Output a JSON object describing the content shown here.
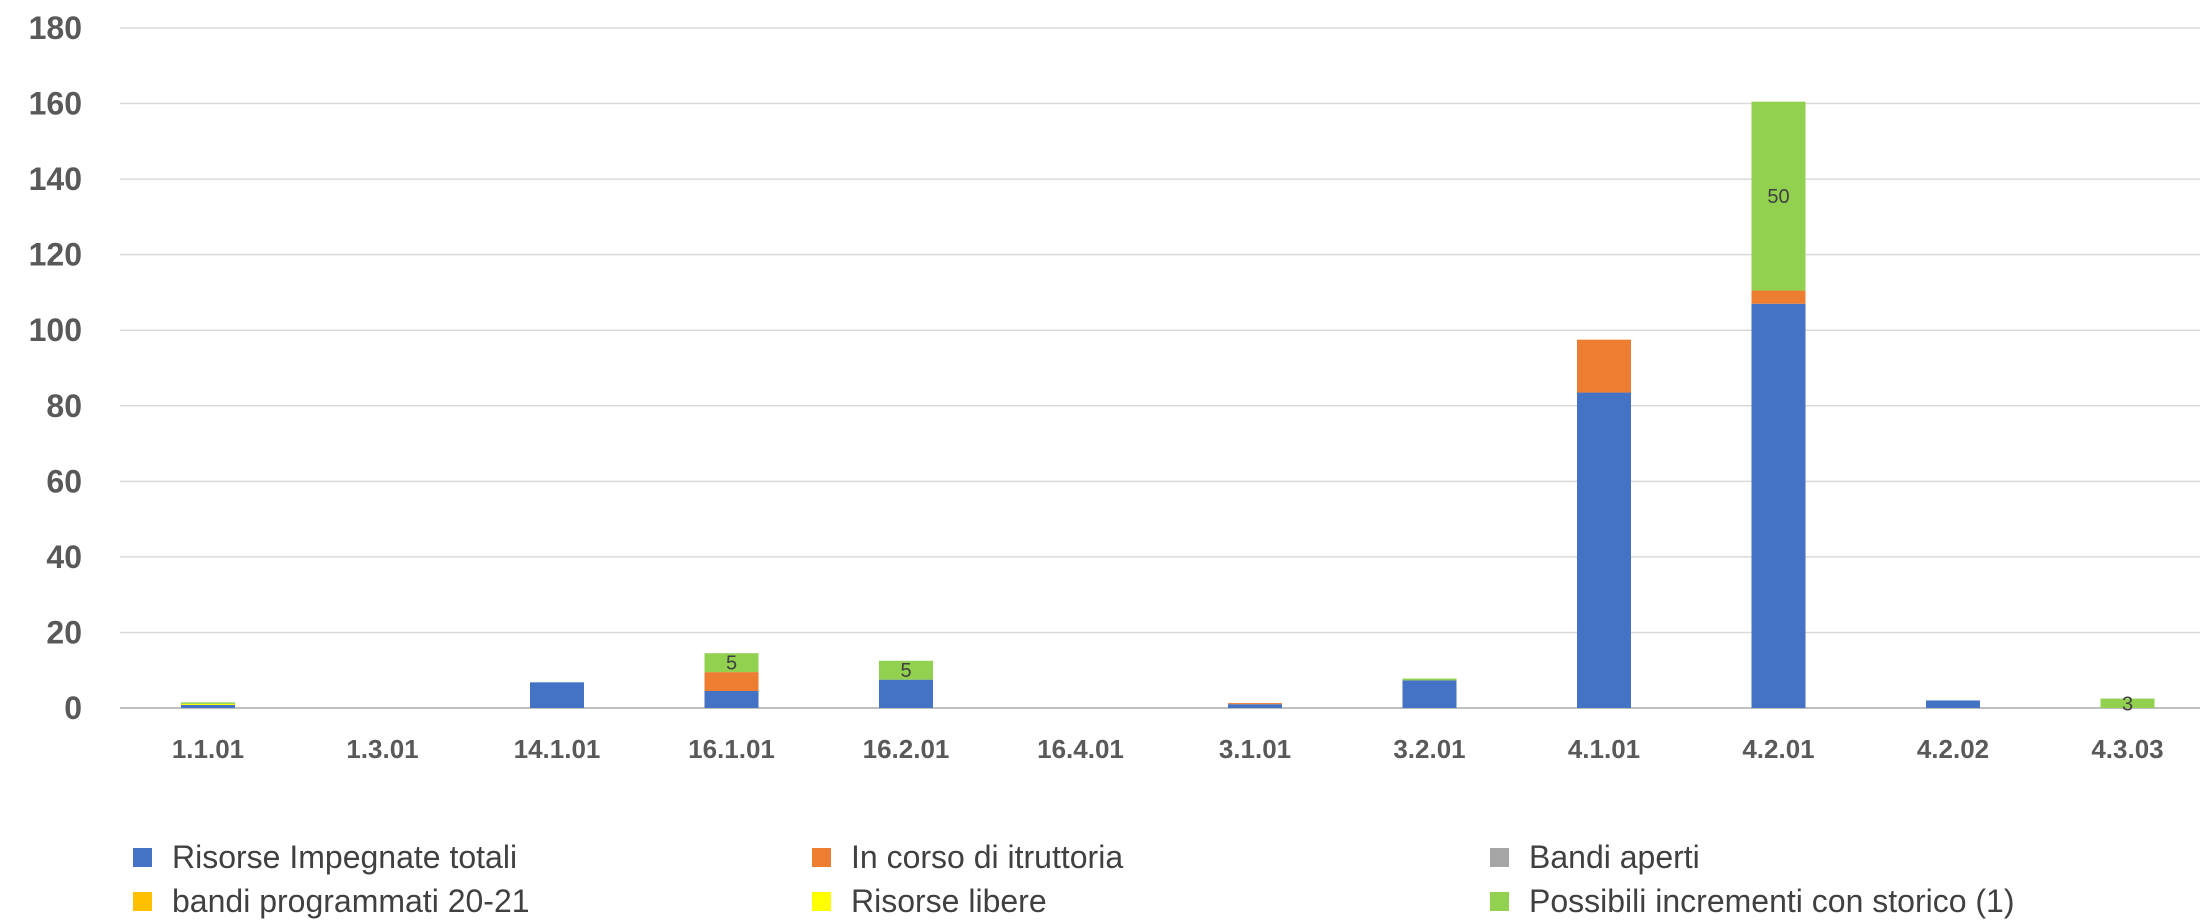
{
  "chart_data": {
    "type": "bar",
    "stacked": true,
    "categories": [
      "1.1.01",
      "1.3.01",
      "14.1.01",
      "16.1.01",
      "16.2.01",
      "16.4.01",
      "3.1.01",
      "3.2.01",
      "4.1.01",
      "4.2.01",
      "4.2.02",
      "4.3.03"
    ],
    "series": [
      {
        "name": "Risorse Impegnate totali",
        "color": "#4472C4",
        "values": [
          0.8,
          0,
          6.8,
          4.5,
          7.5,
          0,
          1.0,
          7.3,
          83.5,
          107,
          2.0,
          0
        ]
      },
      {
        "name": "In corso di itruttoria",
        "color": "#ED7D31",
        "values": [
          0,
          0,
          0,
          5,
          0,
          0,
          0.3,
          0,
          14,
          3.5,
          0,
          0
        ]
      },
      {
        "name": "Bandi aperti",
        "color": "#A5A5A5",
        "values": [
          0,
          0,
          0,
          0,
          0,
          0,
          0,
          0,
          0,
          0,
          0,
          0
        ]
      },
      {
        "name": "bandi programmati 20-21",
        "color": "#FFC000",
        "values": [
          0,
          0,
          0,
          0,
          0,
          0,
          0,
          0,
          0,
          0,
          0,
          0
        ]
      },
      {
        "name": "Risorse libere",
        "color": "#FFFF00",
        "values": [
          0.3,
          0,
          0,
          0,
          0,
          0,
          0,
          0,
          0,
          0,
          0,
          0
        ]
      },
      {
        "name": "Possibili incrementi con storico (1)",
        "color": "#92D050",
        "values": [
          0.4,
          0,
          0,
          5,
          5,
          0,
          0,
          0.5,
          0,
          50,
          0,
          2.5
        ]
      }
    ],
    "data_labels": [
      {
        "category": "16.1.01",
        "series": "Possibili incrementi con storico (1)",
        "text": "5"
      },
      {
        "category": "16.2.01",
        "series": "Possibili incrementi con storico (1)",
        "text": "5"
      },
      {
        "category": "4.2.01",
        "series": "Possibili incrementi con storico (1)",
        "text": "50"
      },
      {
        "category": "4.3.03",
        "series": "Possibili incrementi con storico (1)",
        "text": "3"
      }
    ],
    "y_ticks": [
      "0",
      "20",
      "40",
      "60",
      "80",
      "100",
      "120",
      "140",
      "160",
      "180"
    ],
    "ylim": [
      0,
      180
    ],
    "grid": true,
    "legend_position": "bottom",
    "title": "",
    "xlabel": "",
    "ylabel": ""
  }
}
